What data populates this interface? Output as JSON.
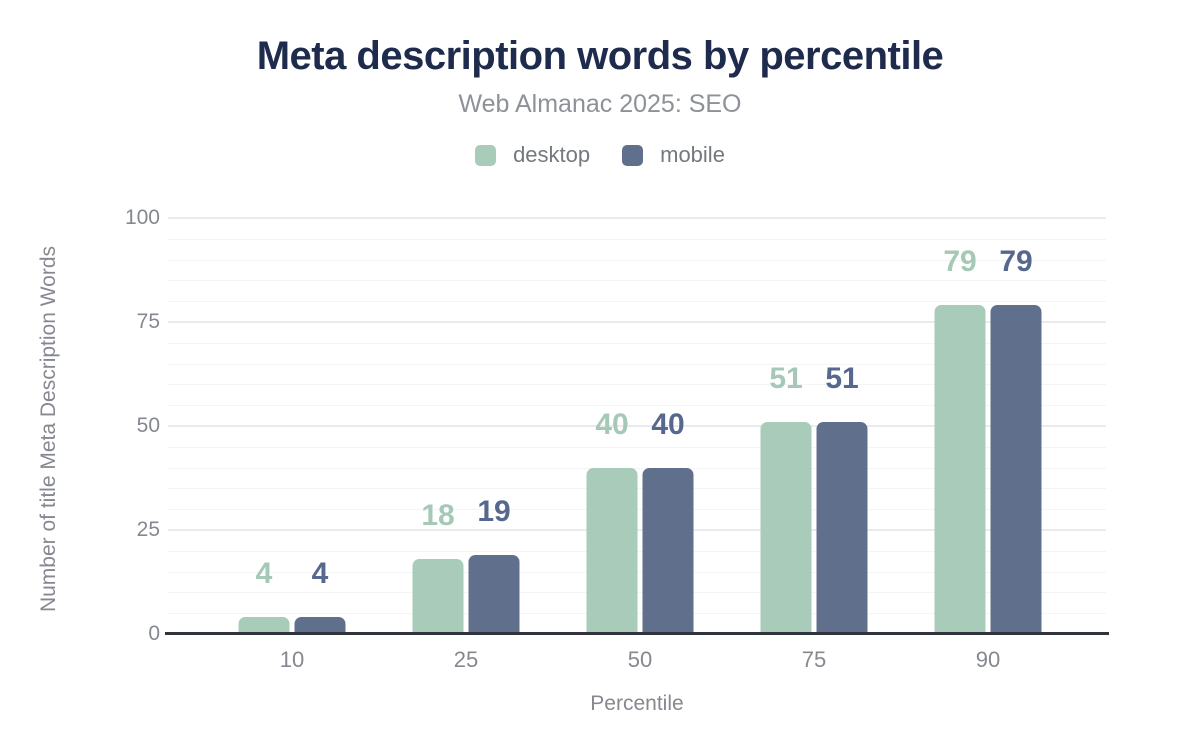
{
  "palette": {
    "title_color": "#1e2b4d",
    "muted_text_color": "#85898f",
    "legend_text_color": "#74787f",
    "axis_line_color": "#2f353b",
    "grid_major_color": "#e9ebee",
    "grid_minor_color": "#f3f4f6",
    "background": "#ffffff"
  },
  "chart_data": {
    "type": "bar",
    "title": "Meta description words by percentile",
    "subtitle": "Web Almanac 2025: SEO",
    "categories": [
      "10",
      "25",
      "50",
      "75",
      "90"
    ],
    "series": [
      {
        "name": "desktop",
        "color": "#a8cbba",
        "label_color": "#a5c8b7",
        "values": [
          4,
          18,
          40,
          51,
          79
        ]
      },
      {
        "name": "mobile",
        "color": "#60708c",
        "label_color": "#56688e",
        "values": [
          4,
          19,
          40,
          51,
          79
        ]
      }
    ],
    "xlabel": "Percentile",
    "ylabel": "Number of title Meta Description Words",
    "ylim": [
      0,
      100
    ],
    "yticks": [
      0,
      25,
      50,
      75,
      100
    ],
    "minor_grid_step": 5,
    "grid": true,
    "legend_position": "top"
  }
}
